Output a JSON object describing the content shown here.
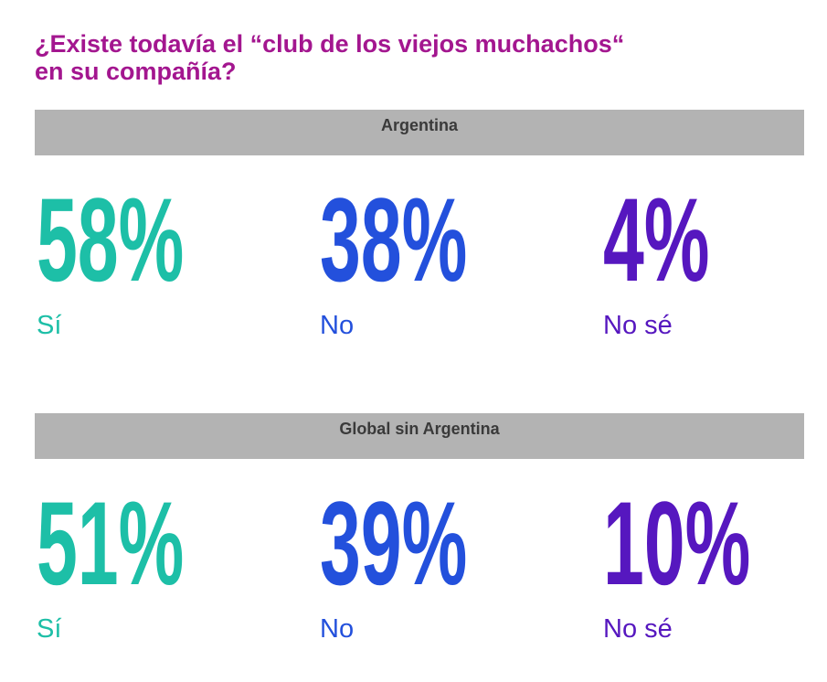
{
  "header": {
    "title_lines": [
      "¿Existe todavía el “club de los viejos muchachos“",
      "en su compañía?"
    ]
  },
  "sections": [
    {
      "heading": "Argentina",
      "items": [
        {
          "figure": "58%",
          "label": "Sí",
          "color": "#1dbfa7"
        },
        {
          "figure": "38%",
          "label": "No",
          "color": "#2350dc"
        },
        {
          "figure": "4%",
          "label": "No sé",
          "color": "#5617bf"
        }
      ]
    },
    {
      "heading": "Global sin Argentina",
      "items": [
        {
          "figure": "51%",
          "label": "Sí",
          "color": "#1dbfa7"
        },
        {
          "figure": "39%",
          "label": "No",
          "color": "#2350dc"
        },
        {
          "figure": "10%",
          "label": "No sé",
          "color": "#5617bf"
        }
      ]
    }
  ]
}
